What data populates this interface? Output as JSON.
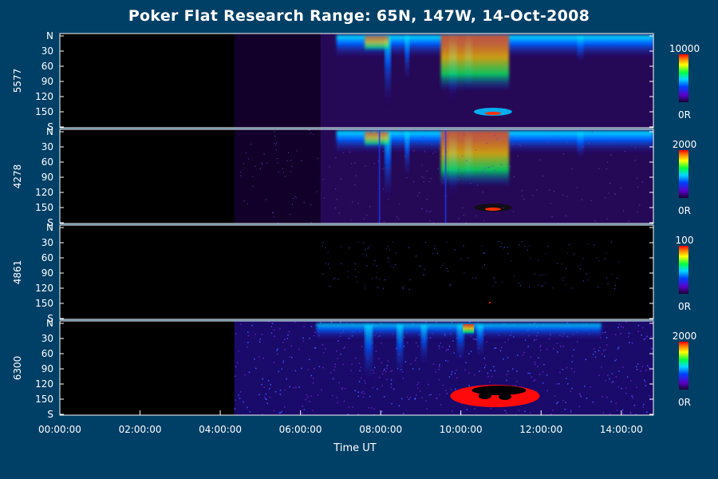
{
  "chart_data": {
    "type": "heatmap",
    "title": "Poker Flat Research Range: 65N, 147W, 14-Oct-2008",
    "xlabel": "Time UT",
    "x_ticks": [
      "00:00:00",
      "02:00:00",
      "04:00:00",
      "06:00:00",
      "08:00:00",
      "10:00:00",
      "12:00:00",
      "14:00:00"
    ],
    "y_ticks": [
      "N",
      "30",
      "60",
      "90",
      "120",
      "150",
      "S"
    ],
    "xlim_hours": [
      0,
      14.8
    ],
    "ylim_degrees": [
      0,
      180
    ],
    "panels": [
      {
        "name": "5577",
        "colorbar_max": "10000",
        "colorbar_min": "0R",
        "data_start_hour": 4.35,
        "bright_start_hour": 6.5
      },
      {
        "name": "4278",
        "colorbar_max": "2000",
        "colorbar_min": "0R",
        "data_start_hour": 4.35,
        "bright_start_hour": 6.5
      },
      {
        "name": "4861",
        "colorbar_max": "100",
        "colorbar_min": "0R",
        "data_start_hour": 4.35,
        "bright_start_hour": 6.5
      },
      {
        "name": "6300",
        "colorbar_max": "2000",
        "colorbar_min": "0R",
        "data_start_hour": 4.35,
        "bright_start_hour": 6.5
      }
    ]
  }
}
